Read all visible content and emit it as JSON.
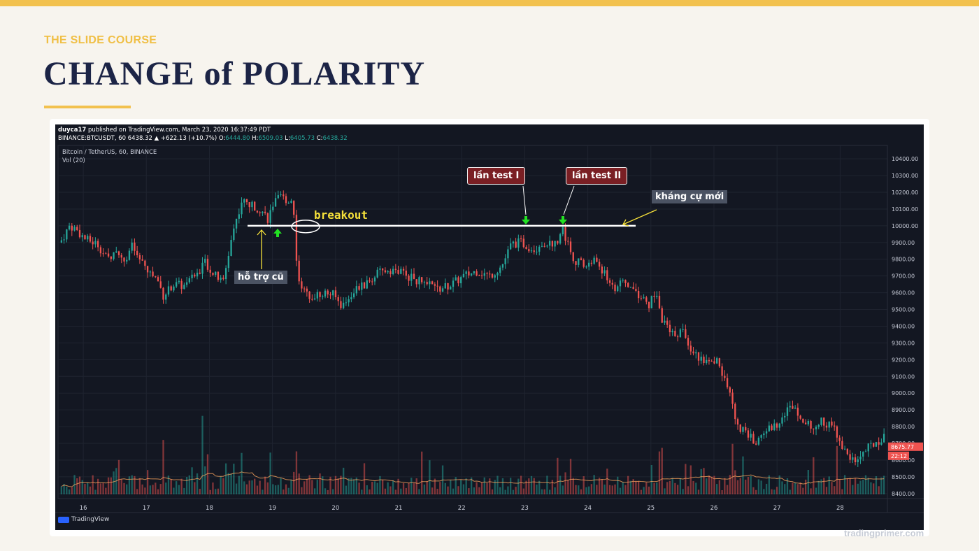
{
  "slide": {
    "kicker": "THE SLIDE COURSE",
    "title": "CHANGE of POLARITY",
    "footer_brand": "tradingprimer.com"
  },
  "chart_header": {
    "publisher_user": "duyca17",
    "publisher_text": " published on TradingView.com, March 23, 2020 16:37:49 PDT",
    "ticker_line": "BINANCE:BTCUSDT, 60  6438.32 ▲ +622.13 (+10.7%) O:",
    "open": "6444.80",
    "high_label": " H:",
    "high": "6509.03",
    "low_label": " L:",
    "low": "6405.73",
    "close_label": " C:",
    "close": "6438.32",
    "symbol_line": "Bitcoin / TetherUS, 60, BINANCE",
    "volume_line": "Vol (20)",
    "logo_text": "TradingView"
  },
  "annotations": {
    "old_support": "hỗ trợ cũ",
    "breakout": "breakout",
    "test_1": "lần test I",
    "test_2": "lần test II",
    "new_resistance": "kháng cự mới"
  },
  "colors": {
    "accent": "#f2c14e",
    "title": "#1c2446",
    "bull": "#26a69a",
    "bear": "#ef5350",
    "level_line": "#ffffff",
    "arrow_green": "#22e022",
    "arrow_yellow": "#f5e03a",
    "price_tag": "#ef5350"
  },
  "chart_data": {
    "type": "candlestick",
    "symbol": "BTCUSDT",
    "interval": "60",
    "x_ticks": [
      "16",
      "17",
      "18",
      "19",
      "20",
      "21",
      "22",
      "23",
      "24",
      "25",
      "26",
      "27",
      "28"
    ],
    "y_ticks": [
      "10400.00",
      "10300.00",
      "10200.00",
      "10100.00",
      "10000.00",
      "9900.00",
      "9800.00",
      "9700.00",
      "9600.00",
      "9500.00",
      "9400.00",
      "9300.00",
      "9200.00",
      "9100.00",
      "9000.00",
      "8900.00",
      "8800.00",
      "8700.00",
      "8600.00",
      "8500.00",
      "8400.00"
    ],
    "ylim": [
      8370,
      10480
    ],
    "key_level": 10000,
    "last_price": "8675.77",
    "countdown": "22:12",
    "path_points": [
      [
        15.6,
        9900
      ],
      [
        15.75,
        10000
      ],
      [
        15.85,
        9980
      ],
      [
        16.0,
        9920
      ],
      [
        16.2,
        9890
      ],
      [
        16.35,
        9800
      ],
      [
        16.5,
        9860
      ],
      [
        16.6,
        9780
      ],
      [
        16.75,
        9880
      ],
      [
        16.85,
        9800
      ],
      [
        17.0,
        9730
      ],
      [
        17.15,
        9680
      ],
      [
        17.25,
        9580
      ],
      [
        17.4,
        9650
      ],
      [
        17.6,
        9640
      ],
      [
        17.8,
        9720
      ],
      [
        17.9,
        9790
      ],
      [
        18.05,
        9710
      ],
      [
        18.2,
        9660
      ],
      [
        18.35,
        9960
      ],
      [
        18.5,
        10150
      ],
      [
        18.65,
        10120
      ],
      [
        18.8,
        10100
      ],
      [
        18.92,
        10040
      ],
      [
        19.0,
        10130
      ],
      [
        19.12,
        10170
      ],
      [
        19.25,
        10150
      ],
      [
        19.32,
        10150
      ],
      [
        19.38,
        9720
      ],
      [
        19.5,
        9600
      ],
      [
        19.65,
        9580
      ],
      [
        19.8,
        9600
      ],
      [
        19.95,
        9590
      ],
      [
        20.1,
        9520
      ],
      [
        20.3,
        9620
      ],
      [
        20.5,
        9650
      ],
      [
        20.65,
        9710
      ],
      [
        20.85,
        9740
      ],
      [
        21.05,
        9720
      ],
      [
        21.25,
        9680
      ],
      [
        21.45,
        9650
      ],
      [
        21.65,
        9620
      ],
      [
        21.85,
        9650
      ],
      [
        22.05,
        9700
      ],
      [
        22.25,
        9730
      ],
      [
        22.45,
        9700
      ],
      [
        22.65,
        9760
      ],
      [
        22.8,
        9890
      ],
      [
        22.95,
        9900
      ],
      [
        23.05,
        9880
      ],
      [
        23.15,
        9860
      ],
      [
        23.35,
        9900
      ],
      [
        23.5,
        9890
      ],
      [
        23.62,
        9980
      ],
      [
        23.72,
        9870
      ],
      [
        23.82,
        9790
      ],
      [
        24.0,
        9760
      ],
      [
        24.15,
        9800
      ],
      [
        24.3,
        9700
      ],
      [
        24.45,
        9630
      ],
      [
        24.6,
        9660
      ],
      [
        24.75,
        9620
      ],
      [
        24.9,
        9560
      ],
      [
        25.0,
        9520
      ],
      [
        25.1,
        9620
      ],
      [
        25.2,
        9440
      ],
      [
        25.35,
        9350
      ],
      [
        25.55,
        9370
      ],
      [
        25.7,
        9240
      ],
      [
        25.85,
        9200
      ],
      [
        26.0,
        9170
      ],
      [
        26.1,
        9200
      ],
      [
        26.2,
        9080
      ],
      [
        26.3,
        8980
      ],
      [
        26.4,
        8800
      ],
      [
        26.55,
        8760
      ],
      [
        26.7,
        8700
      ],
      [
        26.85,
        8780
      ],
      [
        27.0,
        8800
      ],
      [
        27.15,
        8880
      ],
      [
        27.3,
        8930
      ],
      [
        27.45,
        8850
      ],
      [
        27.6,
        8780
      ],
      [
        27.7,
        8830
      ],
      [
        27.85,
        8820
      ],
      [
        28.0,
        8760
      ],
      [
        28.15,
        8620
      ],
      [
        28.3,
        8600
      ],
      [
        28.45,
        8660
      ],
      [
        28.6,
        8700
      ],
      [
        28.7,
        8730
      ]
    ],
    "candles_per_day": 24,
    "x_range_days": [
      15.6,
      28.75
    ]
  }
}
